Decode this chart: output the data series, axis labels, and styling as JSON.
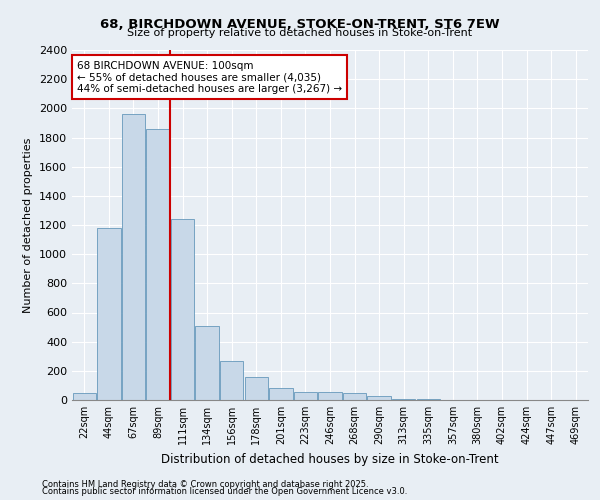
{
  "title": "68, BIRCHDOWN AVENUE, STOKE-ON-TRENT, ST6 7EW",
  "subtitle": "Size of property relative to detached houses in Stoke-on-Trent",
  "xlabel": "Distribution of detached houses by size in Stoke-on-Trent",
  "ylabel": "Number of detached properties",
  "footnote1": "Contains HM Land Registry data © Crown copyright and database right 2025.",
  "footnote2": "Contains public sector information licensed under the Open Government Licence v3.0.",
  "bar_color": "#c8d8e8",
  "bar_edge_color": "#6699bb",
  "categories": [
    "22sqm",
    "44sqm",
    "67sqm",
    "89sqm",
    "111sqm",
    "134sqm",
    "156sqm",
    "178sqm",
    "201sqm",
    "223sqm",
    "246sqm",
    "268sqm",
    "290sqm",
    "313sqm",
    "335sqm",
    "357sqm",
    "380sqm",
    "402sqm",
    "424sqm",
    "447sqm",
    "469sqm"
  ],
  "values": [
    50,
    1180,
    1960,
    1860,
    1240,
    510,
    265,
    155,
    80,
    55,
    55,
    50,
    25,
    10,
    5,
    3,
    2,
    1,
    1,
    0,
    0
  ],
  "ylim": [
    0,
    2400
  ],
  "yticks": [
    0,
    200,
    400,
    600,
    800,
    1000,
    1200,
    1400,
    1600,
    1800,
    2000,
    2200,
    2400
  ],
  "vline_x": 3.5,
  "annotation_text": "68 BIRCHDOWN AVENUE: 100sqm\n← 55% of detached houses are smaller (4,035)\n44% of semi-detached houses are larger (3,267) →",
  "vline_color": "#cc0000",
  "annotation_box_color": "#ffffff",
  "annotation_box_edge_color": "#cc0000",
  "background_color": "#e8eef4",
  "plot_bg_color": "#e8eef4",
  "grid_color": "#ffffff"
}
